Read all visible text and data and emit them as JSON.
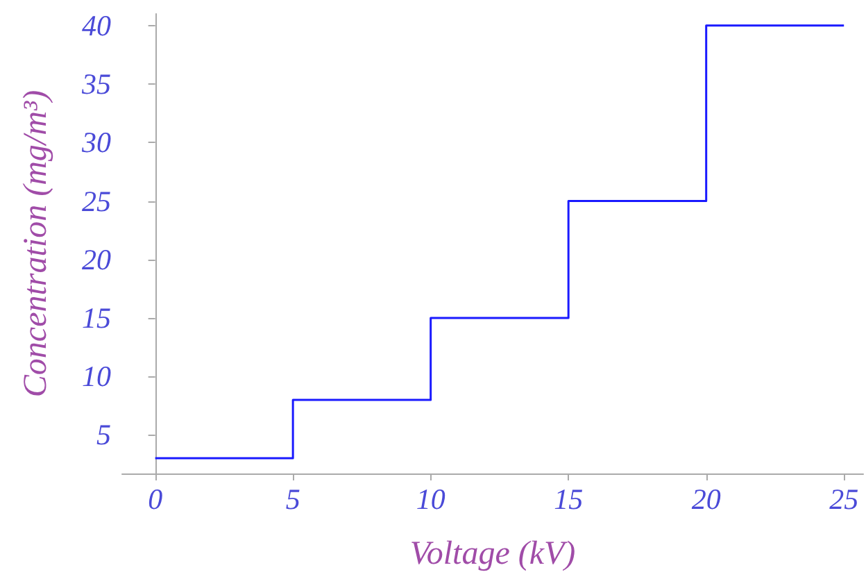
{
  "chart_data": {
    "type": "step",
    "xlabel": "Voltage (kV)",
    "ylabel": "Concentration (mg/m³)",
    "x": [
      0,
      5,
      10,
      15,
      20,
      25
    ],
    "series": [
      {
        "color": "#1a1aff",
        "values": [
          3,
          8,
          15,
          25,
          40,
          40
        ]
      }
    ],
    "xlim": [
      -1.2,
      25.7
    ],
    "xticks": [
      0,
      5,
      10,
      15,
      20,
      25
    ],
    "ylim": [
      1.7,
      41
    ],
    "yticks": [
      5,
      10,
      15,
      20,
      25,
      30,
      35,
      40
    ],
    "grid": false,
    "marker": "none",
    "line_style": "solid"
  }
}
